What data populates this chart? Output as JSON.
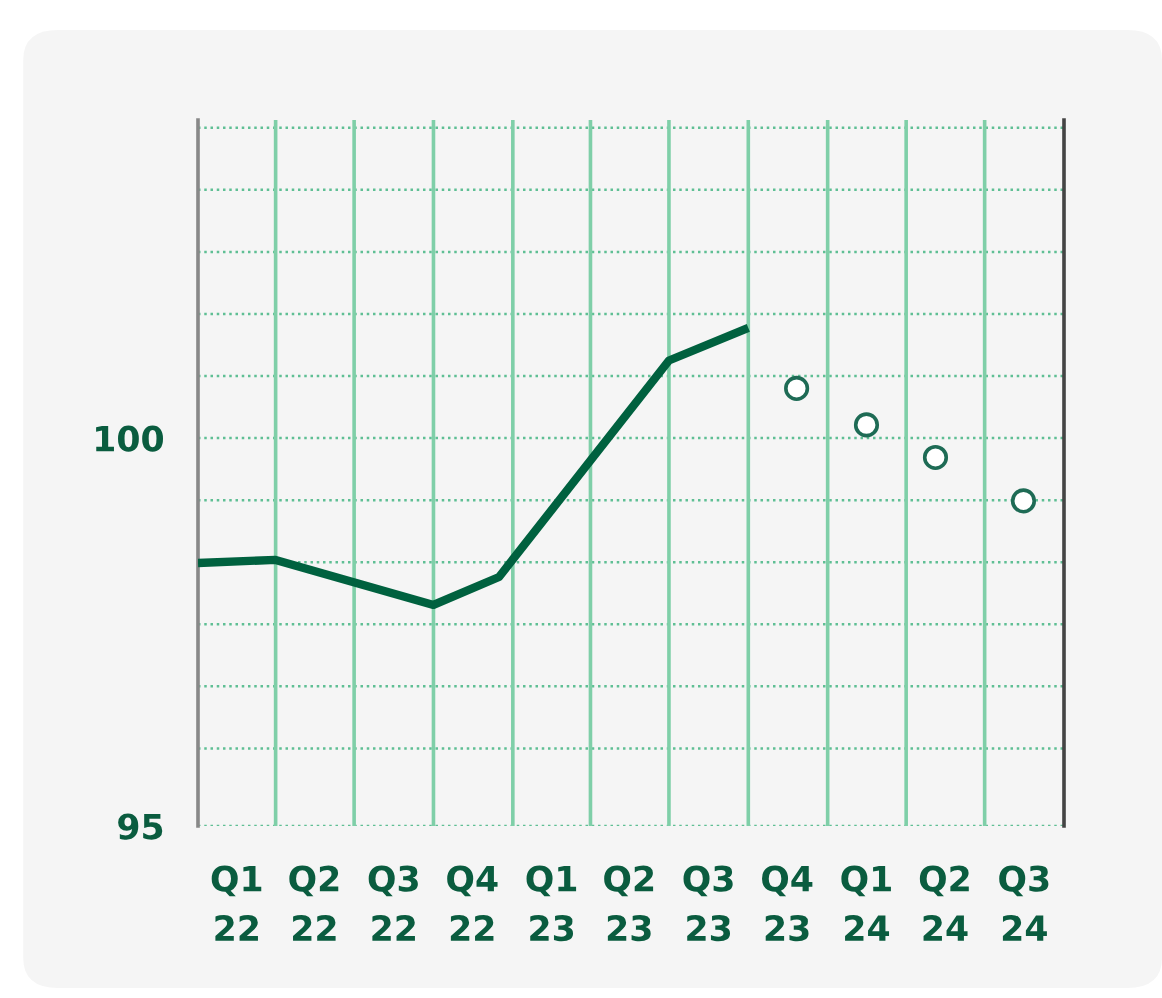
{
  "chart_data": {
    "type": "line",
    "xlim": [
      "2022-01-01",
      "2024-10-01"
    ],
    "ylim": [
      95,
      104.1
    ],
    "xticks": [
      {
        "value": "2022-02-15",
        "label": "Q1\n22"
      },
      {
        "value": "2022-05-16",
        "label": "Q2\n22"
      },
      {
        "value": "2022-08-16",
        "label": "Q3\n22"
      },
      {
        "value": "2022-11-15",
        "label": "Q4\n22"
      },
      {
        "value": "2023-02-15",
        "label": "Q1\n23"
      },
      {
        "value": "2023-05-16",
        "label": "Q2\n23"
      },
      {
        "value": "2023-08-16",
        "label": "Q3\n23"
      },
      {
        "value": "2023-11-15",
        "label": "Q4\n23"
      },
      {
        "value": "2024-02-15",
        "label": "Q1\n24"
      },
      {
        "value": "2024-05-16",
        "label": "Q2\n24"
      },
      {
        "value": "2024-08-16",
        "label": "Q3\n24"
      }
    ],
    "yticks": [
      95,
      {
        "value": 96.0,
        "label": null
      },
      {
        "value": 96.8,
        "label": null
      },
      {
        "value": 97.6,
        "label": null
      },
      {
        "value": 98.4,
        "label": null
      },
      {
        "value": 99.2,
        "label": null
      },
      100,
      {
        "value": 100.8,
        "label": null
      },
      {
        "value": 101.6,
        "label": null
      },
      {
        "value": 102.4,
        "label": null
      },
      {
        "value": 103.2,
        "label": null
      },
      {
        "value": 104.0,
        "label": null
      }
    ],
    "grid": "y",
    "ref_lines": [
      {
        "axis": "x",
        "value": "2022-04-01",
        "color": "#7fcfa8"
      },
      {
        "axis": "x",
        "value": "2022-07-01",
        "color": "#7fcfa8"
      },
      {
        "axis": "x",
        "value": "2022-10-01",
        "color": "#7fcfa8"
      },
      {
        "axis": "x",
        "value": "2023-01-01",
        "color": "#7fcfa8"
      },
      {
        "axis": "x",
        "value": "2023-04-01",
        "color": "#7fcfa8"
      },
      {
        "axis": "x",
        "value": "2023-07-01",
        "color": "#7fcfa8"
      },
      {
        "axis": "x",
        "value": "2023-10-01",
        "color": "#7fcfa8"
      },
      {
        "axis": "x",
        "value": "2024-01-01",
        "color": "#7fcfa8"
      },
      {
        "axis": "x",
        "value": "2024-04-01",
        "color": "#7fcfa8"
      },
      {
        "axis": "x",
        "value": "2024-07-01",
        "color": "#7fcfa8"
      }
    ],
    "series": [
      {
        "color": "#00613f",
        "x": [
          "2022-01-01",
          "2022-04-01",
          "2022-10-01",
          "2022-12-16",
          "2023-07-01",
          "2023-10-01"
        ],
        "values": [
          98.39,
          98.43,
          97.85,
          98.21,
          101.0,
          101.42
        ]
      },
      {
        "type": "scatter",
        "marker": "circle",
        "color": "#1e6b55",
        "x": [
          "2023-11-26",
          "2024-02-15",
          "2024-05-05",
          "2024-08-15"
        ],
        "values": [
          100.64,
          100.17,
          99.75,
          99.19
        ]
      }
    ]
  }
}
